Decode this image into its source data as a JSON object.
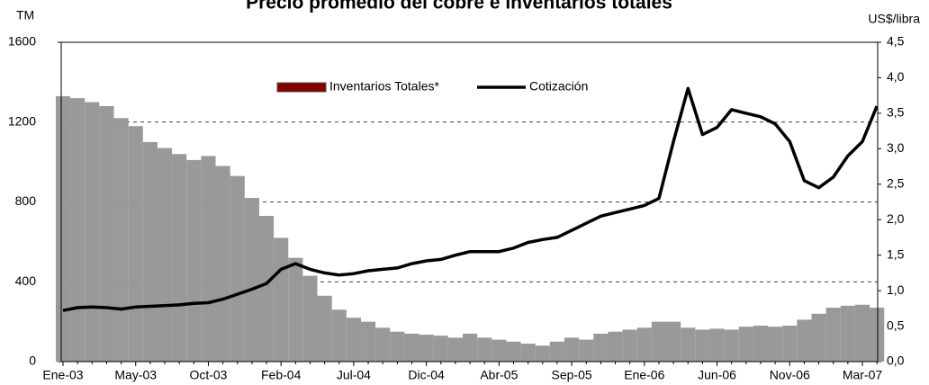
{
  "chart_data": {
    "type": "bar_line",
    "title": "Precio promedio del cobre e inventarios totales",
    "y_label": "TM",
    "y2_label": "US$/libra",
    "categories": [
      "Ene-03",
      null,
      null,
      null,
      null,
      "May-03",
      null,
      null,
      null,
      null,
      "Oct-03",
      null,
      null,
      null,
      null,
      "Feb-04",
      null,
      null,
      null,
      null,
      "Jul-04",
      null,
      null,
      null,
      null,
      "Dic-04",
      null,
      null,
      null,
      null,
      "Abr-05",
      null,
      null,
      null,
      null,
      "Sep-05",
      null,
      null,
      null,
      null,
      "Ene-06",
      null,
      null,
      null,
      null,
      "Jun-06",
      null,
      null,
      null,
      null,
      "Nov-06",
      null,
      null,
      null,
      null,
      "Mar-07",
      null
    ],
    "series": [
      {
        "name": "Inventarios Totales*",
        "type": "bar",
        "color": "#999999",
        "legend_color": "#800000",
        "values": [
          1330,
          1320,
          1300,
          1280,
          1220,
          1180,
          1100,
          1070,
          1040,
          1010,
          1030,
          980,
          930,
          820,
          730,
          620,
          520,
          430,
          330,
          260,
          220,
          200,
          170,
          150,
          140,
          135,
          130,
          120,
          140,
          120,
          110,
          100,
          90,
          80,
          100,
          120,
          110,
          140,
          150,
          160,
          170,
          200,
          200,
          170,
          160,
          165,
          160,
          175,
          180,
          175,
          180,
          210,
          240,
          270,
          280,
          285,
          270
        ]
      },
      {
        "name": "Cotización",
        "type": "line",
        "axis": "y2",
        "color": "#000000",
        "values": [
          0.72,
          0.76,
          0.77,
          0.76,
          0.74,
          0.77,
          0.78,
          0.79,
          0.8,
          0.82,
          0.83,
          0.88,
          0.95,
          1.02,
          1.1,
          1.3,
          1.38,
          1.3,
          1.25,
          1.22,
          1.24,
          1.28,
          1.3,
          1.32,
          1.38,
          1.42,
          1.44,
          1.5,
          1.55,
          1.55,
          1.55,
          1.6,
          1.68,
          1.72,
          1.75,
          1.85,
          1.95,
          2.05,
          2.1,
          2.15,
          2.2,
          2.3,
          3.1,
          3.85,
          3.2,
          3.3,
          3.55,
          3.5,
          3.45,
          3.35,
          3.1,
          2.55,
          2.45,
          2.6,
          2.9,
          3.1,
          3.6
        ]
      }
    ],
    "ylim": [
      0,
      1600
    ],
    "yticks": [
      0,
      400,
      800,
      1200,
      1600
    ],
    "y2lim": [
      0,
      4.5
    ],
    "y2ticks": [
      {
        "value": 0,
        "label": "0,0"
      },
      {
        "value": 0.5,
        "label": "0,5"
      },
      {
        "value": 1,
        "label": "1,0"
      },
      {
        "value": 1.5,
        "label": "1,5"
      },
      {
        "value": 2,
        "label": "2,0"
      },
      {
        "value": 2.5,
        "label": "2,5"
      },
      {
        "value": 3,
        "label": "3,0"
      },
      {
        "value": 3.5,
        "label": "3,5"
      },
      {
        "value": 4,
        "label": "4,0"
      },
      {
        "value": 4.5,
        "label": "4,5"
      }
    ],
    "grid": true,
    "legend": "top"
  }
}
